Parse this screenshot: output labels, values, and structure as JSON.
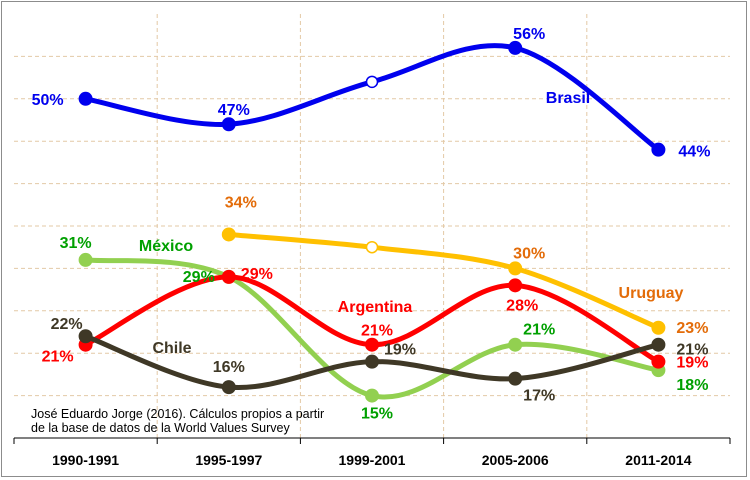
{
  "chart_data": {
    "type": "line",
    "title": "",
    "xlabel": "",
    "ylabel": "",
    "categories": [
      "1990-1991",
      "1995-1997",
      "1999-2001",
      "2005-2006",
      "2011-2014"
    ],
    "ylim": [
      10,
      60
    ],
    "grid": true,
    "series": [
      {
        "name": "Brasil",
        "color": "#0000ee",
        "values": [
          50,
          47,
          52,
          56,
          44
        ],
        "labels": [
          "50%",
          "47%",
          "",
          "56%",
          "44%"
        ],
        "hollow": [
          2
        ]
      },
      {
        "name": "Uruguay",
        "color": "#ffc000",
        "label_color": "#e36c09",
        "values": [
          null,
          34,
          32.5,
          30,
          23
        ],
        "labels": [
          "",
          "34%",
          "",
          "30%",
          "23%"
        ],
        "hollow": [
          2
        ]
      },
      {
        "name": "México",
        "color": "#92d050",
        "label_color": "#00a000",
        "values": [
          31,
          29,
          15,
          21,
          18
        ],
        "labels": [
          "31%",
          "29%",
          "15%",
          "21%",
          "18%"
        ],
        "hollow": []
      },
      {
        "name": "Argentina",
        "color": "#ff0000",
        "values": [
          21,
          29,
          21,
          28,
          19
        ],
        "labels": [
          "21%",
          "29%",
          "21%",
          "28%",
          "19%"
        ],
        "hollow": []
      },
      {
        "name": "Chile",
        "color": "#3f3826",
        "values": [
          22,
          16,
          19,
          17,
          21
        ],
        "labels": [
          "22%",
          "16%",
          "19%",
          "17%",
          "21%"
        ],
        "hollow": []
      }
    ],
    "source_note": [
      "José Eduardo Jorge (2016). Cálculos propios a partir",
      "de la base de datos de la World Values Survey"
    ]
  }
}
